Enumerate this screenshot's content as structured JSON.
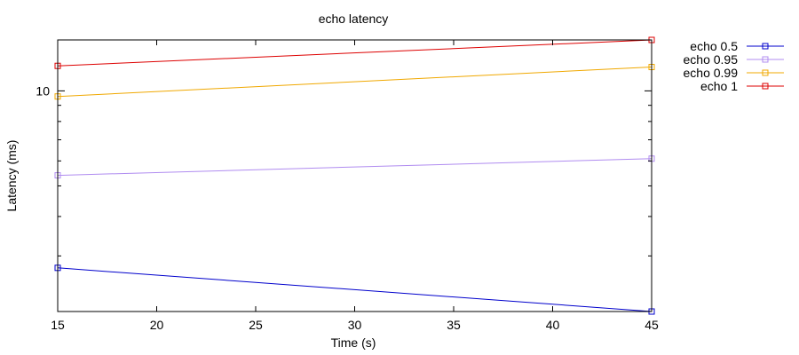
{
  "chart_data": {
    "type": "line",
    "title": "echo latency",
    "xlabel": "Time (s)",
    "ylabel": "Latency (ms)",
    "xlim": [
      15,
      45
    ],
    "ylim": [
      2.0,
      14.5
    ],
    "yscale": "log",
    "x_ticks": [
      "15",
      "20",
      "25",
      "30",
      "35",
      "40",
      "45"
    ],
    "y_tick_labels": [
      "10"
    ],
    "grid": false,
    "legend_position": "top-right",
    "x": [
      15,
      45
    ],
    "series": [
      {
        "name": "echo 0.5",
        "color": "#0000cc",
        "values": [
          2.75,
          2.0
        ]
      },
      {
        "name": "echo 0.95",
        "color": "#b08cf0",
        "values": [
          5.4,
          6.1
        ]
      },
      {
        "name": "echo 0.99",
        "color": "#f0a800",
        "values": [
          9.6,
          11.9
        ]
      },
      {
        "name": "echo 1",
        "color": "#dd0000",
        "values": [
          12.0,
          14.5
        ]
      }
    ]
  }
}
